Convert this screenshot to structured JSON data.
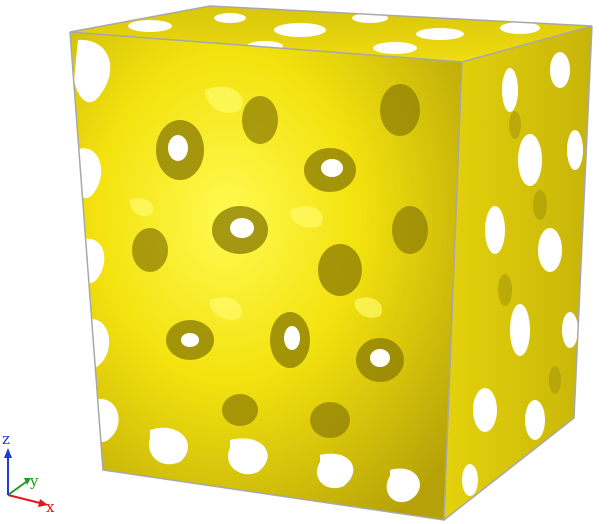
{
  "colors": {
    "background": "#ffffff",
    "structure_light": "#fff200",
    "structure_base": "#e7d510",
    "structure_shadow": "#9c8c06",
    "pore": "#ffffff",
    "box_edge": "#a8a8a8",
    "axis_x": "#e8141c",
    "axis_y": "#1ca01c",
    "axis_z": "#2338d6"
  },
  "axes": {
    "x_label": "x",
    "y_label": "y",
    "z_label": "z"
  },
  "icons": [
    "axes-triad-icon"
  ]
}
